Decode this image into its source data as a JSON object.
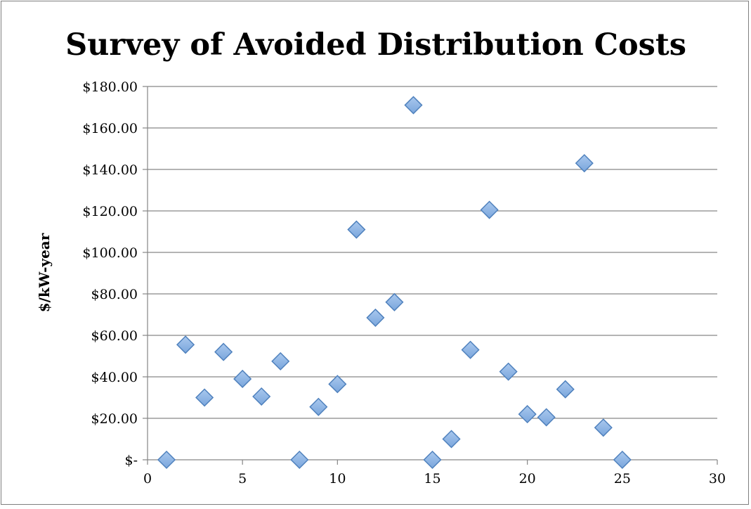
{
  "chart_data": {
    "type": "scatter",
    "title": "Survey of Avoided Distribution Costs",
    "xlabel": "",
    "ylabel": "$/kW-year",
    "xlim": [
      0,
      30
    ],
    "ylim": [
      0,
      180
    ],
    "x_ticks": [
      0,
      5,
      10,
      15,
      20,
      25,
      30
    ],
    "y_ticks": [
      0,
      20,
      40,
      60,
      80,
      100,
      120,
      140,
      160,
      180
    ],
    "y_tick_labels": [
      "$-",
      "$20.00",
      "$40.00",
      "$60.00",
      "$80.00",
      "$100.00",
      "$120.00",
      "$140.00",
      "$160.00",
      "$180.00"
    ],
    "grid": "horizontal",
    "marker": "diamond",
    "marker_color": "#7aa6dc",
    "series": [
      {
        "x": [
          1,
          2,
          3,
          4,
          5,
          6,
          7,
          8,
          9,
          10,
          11,
          12,
          13,
          14,
          15,
          16,
          17,
          18,
          19,
          20,
          21,
          22,
          23,
          24,
          25
        ],
        "y": [
          0,
          55.5,
          30,
          52,
          39,
          30.5,
          47.5,
          0,
          25.5,
          36.5,
          111,
          68.5,
          76,
          171,
          0,
          10,
          53,
          120.5,
          42.5,
          22,
          20.5,
          34,
          143,
          15.5,
          0
        ]
      }
    ]
  }
}
